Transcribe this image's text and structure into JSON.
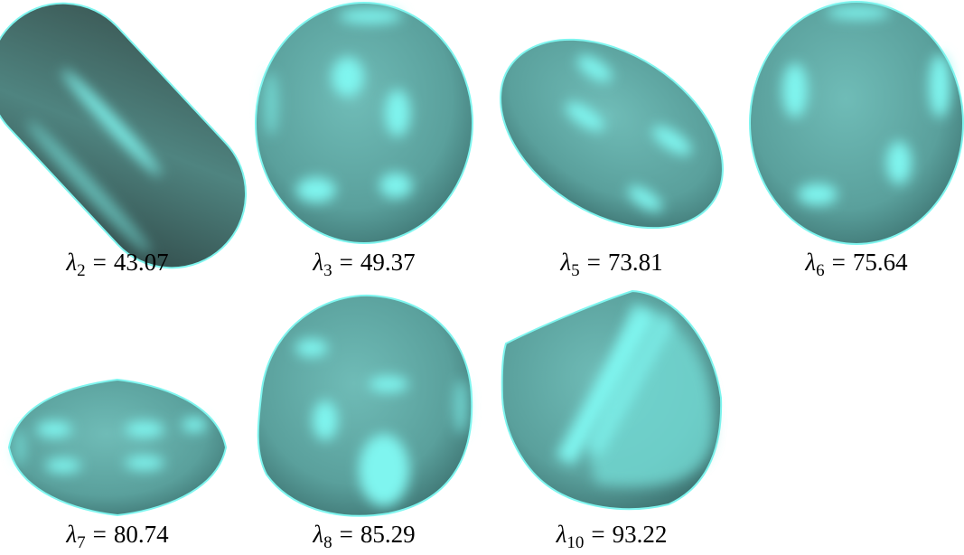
{
  "figure": {
    "symbol": "λ",
    "relation": "=",
    "panels": [
      {
        "index": "2",
        "value": "43.07"
      },
      {
        "index": "3",
        "value": "49.37"
      },
      {
        "index": "5",
        "value": "73.81"
      },
      {
        "index": "6",
        "value": "75.64"
      },
      {
        "index": "7",
        "value": "80.74"
      },
      {
        "index": "8",
        "value": "85.29"
      },
      {
        "index": "10",
        "value": "93.22"
      }
    ]
  }
}
